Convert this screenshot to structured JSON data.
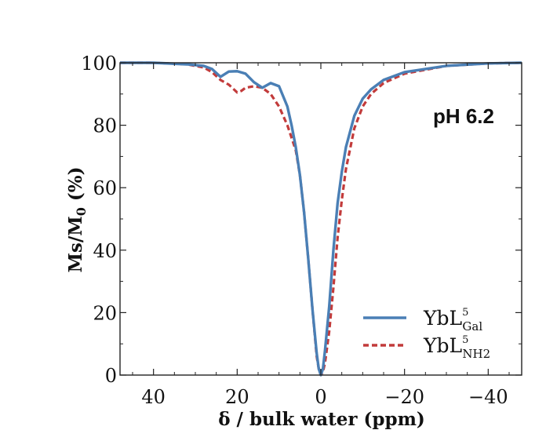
{
  "chart_data": {
    "type": "line",
    "title": "",
    "annotation": "pH 6.2",
    "xlabel": "δ / bulk water (ppm)",
    "ylabel_main": "Ms/M",
    "ylabel_sub": "0",
    "ylabel_unit": " (%)",
    "xlim": [
      48,
      -48
    ],
    "ylim": [
      0,
      100
    ],
    "x_ticks": [
      40,
      20,
      0,
      -20,
      -40
    ],
    "x_tick_labels": [
      "40",
      "20",
      "0",
      "−20",
      "−40"
    ],
    "y_ticks": [
      0,
      20,
      40,
      60,
      80,
      100
    ],
    "y_tick_labels": [
      "0",
      "20",
      "40",
      "60",
      "80",
      "100"
    ],
    "grid": false,
    "legend_position": "lower-right",
    "series": [
      {
        "name": "YbL",
        "name_sup": "5",
        "name_sub": "Gal",
        "color": "#4a7fb5",
        "style": "solid",
        "x": [
          48,
          40,
          32,
          28,
          26,
          24,
          22,
          20,
          18,
          16,
          14,
          12,
          10,
          8,
          7,
          6,
          5,
          4,
          3,
          2,
          1,
          0.5,
          0,
          -0.5,
          -1,
          -2,
          -3,
          -4,
          -5,
          -6,
          -8,
          -10,
          -12,
          -15,
          -20,
          -30,
          -40,
          -48
        ],
        "y": [
          100,
          100,
          99.5,
          99,
          98,
          95.5,
          97.2,
          97.3,
          96.5,
          93.8,
          92,
          93.5,
          92.5,
          86,
          80,
          73,
          64,
          52,
          37,
          21,
          7,
          2,
          0,
          2,
          8,
          22,
          40,
          55,
          65,
          73,
          83,
          88.5,
          91.5,
          94.5,
          97,
          99,
          99.8,
          100
        ]
      },
      {
        "name": "YbL",
        "name_sup": "5",
        "name_sub": "NH2",
        "color": "#c23b3b",
        "style": "dashed",
        "x": [
          48,
          40,
          32,
          28,
          26,
          24,
          22,
          20,
          19,
          18,
          16,
          14,
          12,
          10,
          8,
          6,
          5,
          4,
          3,
          2,
          1,
          0.5,
          0,
          -0.5,
          -1,
          -2,
          -3,
          -4,
          -5,
          -6,
          -8,
          -10,
          -12,
          -15,
          -20,
          -30,
          -40,
          -48
        ],
        "y": [
          100,
          100,
          99.5,
          98.5,
          97,
          94.5,
          93,
          90.5,
          91,
          92,
          92.5,
          92,
          90,
          86,
          80,
          72,
          64,
          52,
          37,
          21,
          6,
          2,
          0,
          1,
          4,
          14,
          28,
          44,
          56,
          66,
          79,
          86,
          90,
          93.5,
          96.5,
          99,
          99.8,
          100
        ]
      }
    ]
  }
}
